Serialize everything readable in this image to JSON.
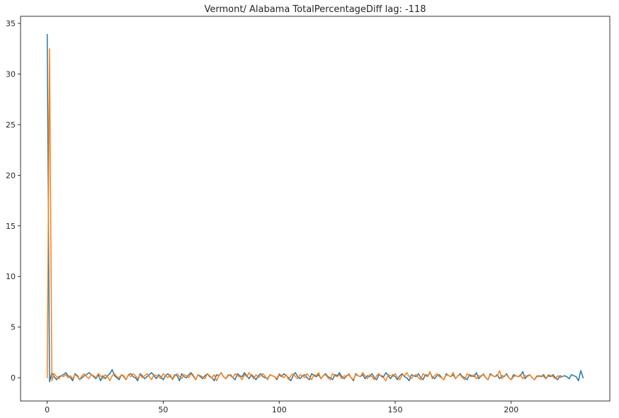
{
  "chart_data": {
    "type": "line",
    "title": "Vermont/ Alabama TotalPercentageDiff lag: -118",
    "xlabel": "",
    "ylabel": "",
    "xlim": [
      -11.5,
      242.5
    ],
    "ylim": [
      -2.3,
      35.7
    ],
    "x_ticks": [
      0,
      50,
      100,
      150,
      200
    ],
    "y_ticks": [
      0,
      5,
      10,
      15,
      20,
      25,
      30,
      35
    ],
    "grid": false,
    "legend": "none",
    "series": [
      {
        "color": "#1f77b4",
        "x_start": 0,
        "values": [
          33.9,
          -0.4,
          0.5,
          0.1,
          -0.2,
          0.1,
          0.2,
          0.3,
          0.5,
          0.2,
          0.0,
          -0.3,
          0.4,
          0.2,
          -0.2,
          0.0,
          0.2,
          0.3,
          0.5,
          0.3,
          0.1,
          -0.1,
          0.3,
          -0.3,
          0.2,
          -0.1,
          0.2,
          0.4,
          0.8,
          0.2,
          0.0,
          -0.2,
          0.3,
          0.1,
          -0.2,
          0.3,
          0.4,
          0.1,
          0.0,
          -0.3,
          0.4,
          0.2,
          -0.1,
          0.1,
          0.3,
          0.5,
          0.2,
          -0.1,
          0.3,
          0.1,
          -0.2,
          0.2,
          0.4,
          0.1,
          -0.1,
          0.3,
          0.2,
          -0.3,
          0.4,
          0.1,
          0.0,
          0.3,
          0.5,
          0.2,
          -0.2,
          0.3,
          0.1,
          -0.1,
          0.2,
          0.4,
          0.1,
          0.0,
          -0.3,
          0.3,
          0.2,
          0.5,
          0.1,
          -0.1,
          0.2,
          0.3,
          0.0,
          -0.2,
          0.4,
          0.2,
          0.1,
          0.5,
          0.2,
          -0.1,
          0.3,
          0.1,
          -0.2,
          0.2,
          0.4,
          0.1,
          0.0,
          -0.1,
          0.3,
          0.2,
          0.1,
          -0.2,
          0.3,
          0.1,
          0.4,
          0.2,
          0.0,
          -0.3,
          0.2,
          0.5,
          0.1,
          -0.1,
          0.2,
          0.3,
          0.0,
          -0.2,
          0.4,
          0.2,
          0.1,
          0.3,
          -0.1,
          0.2,
          0.4,
          0.1,
          0.0,
          -0.2,
          0.3,
          0.2,
          0.5,
          0.1,
          -0.1,
          0.2,
          0.3,
          0.0,
          -0.3,
          0.4,
          0.2,
          0.1,
          0.3,
          -0.1,
          0.2,
          0.1,
          0.4,
          0.0,
          -0.2,
          0.3,
          0.2,
          0.1,
          0.5,
          0.2,
          -0.1,
          0.3,
          0.1,
          -0.2,
          0.2,
          0.4,
          0.1,
          0.0,
          -0.3,
          0.3,
          0.2,
          0.1,
          0.4,
          0.0,
          -0.2,
          0.3,
          0.2,
          0.5,
          0.1,
          -0.1,
          0.2,
          0.3,
          0.0,
          -0.2,
          0.4,
          0.2,
          0.1,
          0.3,
          -0.1,
          0.2,
          0.4,
          0.1,
          0.0,
          -0.2,
          0.3,
          0.2,
          0.1,
          0.5,
          -0.1,
          0.2,
          0.3,
          0.0,
          -0.2,
          0.4,
          0.2,
          0.1,
          0.3,
          -0.1,
          0.2,
          0.1,
          0.4,
          0.0,
          -0.2,
          0.3,
          0.2,
          0.1,
          0.2,
          0.6,
          -0.1,
          0.2,
          0.3,
          0.0,
          -0.2,
          0.1,
          0.2,
          0.1,
          0.3,
          -0.1,
          0.2,
          0.1,
          0.3,
          0.0,
          -0.2,
          0.2,
          0.1,
          0.2,
          0.1,
          -0.1,
          0.3,
          0.2,
          0.1,
          -0.3,
          0.7,
          0.0
        ]
      },
      {
        "color": "#ff7f0e",
        "x_start": 0,
        "values": [
          0.0,
          32.5,
          -0.3,
          0.4,
          0.1,
          -0.1,
          0.2,
          0.1,
          0.3,
          0.0,
          0.2,
          -0.1,
          0.3,
          0.1,
          -0.2,
          0.2,
          0.4,
          0.1,
          -0.1,
          0.3,
          0.2,
          0.0,
          0.4,
          0.2,
          -0.1,
          0.3,
          0.1,
          -0.3,
          0.2,
          0.4,
          0.1,
          0.0,
          0.3,
          0.2,
          -0.2,
          0.3,
          0.1,
          0.4,
          0.2,
          -0.1,
          0.3,
          0.0,
          0.2,
          0.4,
          0.1,
          -0.2,
          0.3,
          0.2,
          0.1,
          -0.1,
          0.4,
          0.2,
          0.0,
          0.3,
          -0.2,
          0.2,
          0.4,
          0.1,
          -0.1,
          0.3,
          0.2,
          0.0,
          0.4,
          0.1,
          -0.2,
          0.3,
          0.2,
          0.1,
          -0.1,
          0.4,
          0.2,
          0.0,
          0.3,
          -0.3,
          0.2,
          0.5,
          0.1,
          -0.1,
          0.3,
          0.2,
          0.0,
          0.4,
          0.2,
          0.1,
          -0.2,
          0.3,
          0.1,
          0.5,
          0.2,
          -0.1,
          0.3,
          0.0,
          0.2,
          0.4,
          0.1,
          -0.2,
          0.3,
          0.2,
          0.1,
          -0.1,
          0.4,
          0.2,
          0.0,
          0.3,
          -0.2,
          0.2,
          0.4,
          0.1,
          -0.1,
          0.3,
          0.2,
          0.0,
          0.4,
          0.1,
          -0.2,
          0.3,
          0.2,
          0.5,
          -0.1,
          0.2,
          0.3,
          0.0,
          -0.2,
          0.4,
          0.2,
          0.1,
          0.3,
          -0.1,
          0.2,
          0.1,
          0.4,
          0.0,
          -0.2,
          0.3,
          0.2,
          0.1,
          0.5,
          0.2,
          -0.1,
          0.3,
          0.1,
          -0.2,
          0.2,
          0.4,
          0.1,
          0.0,
          -0.3,
          0.3,
          0.2,
          0.1,
          0.4,
          0.0,
          -0.2,
          0.3,
          0.2,
          0.5,
          0.1,
          -0.1,
          0.2,
          0.3,
          0.0,
          -0.2,
          0.4,
          0.2,
          0.1,
          0.6,
          -0.1,
          0.2,
          0.4,
          0.1,
          0.0,
          -0.2,
          0.3,
          0.2,
          0.1,
          0.5,
          -0.1,
          0.2,
          0.3,
          0.0,
          -0.2,
          0.4,
          0.2,
          0.1,
          0.3,
          -0.1,
          0.2,
          0.1,
          0.4,
          0.0,
          -0.2,
          0.3,
          0.2,
          0.1,
          0.2,
          0.7,
          -0.1,
          0.2,
          0.3,
          0.0,
          -0.2,
          0.1,
          0.2,
          0.1,
          0.3,
          -0.1,
          0.2,
          0.1,
          0.3,
          0.0,
          -0.2,
          0.2,
          0.1,
          0.2,
          0.1,
          -0.1,
          0.3,
          0.2,
          0.1,
          -0.1,
          0.2,
          0.0,
          0.1
        ]
      }
    ]
  }
}
